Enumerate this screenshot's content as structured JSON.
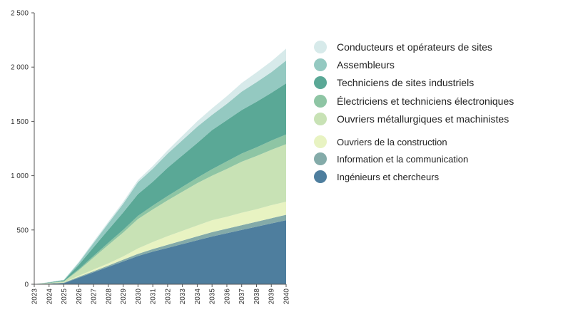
{
  "chart_data": {
    "type": "area",
    "stacked": true,
    "title": "",
    "xlabel": "",
    "ylabel": "",
    "x": [
      "2023",
      "2024",
      "2025",
      "2026",
      "2027",
      "2028",
      "2029",
      "2030",
      "2031",
      "2032",
      "2033",
      "2034",
      "2035",
      "2036",
      "2037",
      "2038",
      "2039",
      "2040"
    ],
    "ylim": [
      0,
      2500
    ],
    "yticks": [
      0,
      500,
      1000,
      1500,
      2000,
      2500
    ],
    "ytick_labels": [
      "0",
      "500",
      "1 000",
      "1 500",
      "2 000",
      "2 500"
    ],
    "series": [
      {
        "name": "Ingénieurs et chercheurs",
        "color": "#4e7e9e",
        "values": [
          0,
          5,
          10,
          60,
          110,
          160,
          210,
          260,
          300,
          335,
          370,
          405,
          440,
          470,
          500,
          530,
          560,
          590
        ]
      },
      {
        "name": "Information et la communication",
        "color": "#84aba9",
        "values": [
          0,
          2,
          5,
          8,
          10,
          12,
          16,
          20,
          24,
          28,
          32,
          36,
          40,
          42,
          44,
          46,
          48,
          50
        ]
      },
      {
        "name": "Ouvriers de la construction",
        "color": "#e8f3c2",
        "values": [
          0,
          1,
          2,
          10,
          15,
          20,
          30,
          50,
          65,
          80,
          90,
          100,
          110,
          110,
          115,
          115,
          120,
          120
        ]
      },
      {
        "name": "Ouvriers métallurgiques et machinistes",
        "color": "#c8e2b5",
        "values": [
          0,
          4,
          8,
          50,
          110,
          170,
          220,
          270,
          300,
          330,
          360,
          390,
          410,
          440,
          470,
          490,
          510,
          530
        ]
      },
      {
        "name": "Électriciens et techniciens électroniques",
        "color": "#8ec5a4",
        "values": [
          0,
          2,
          3,
          10,
          15,
          20,
          25,
          30,
          35,
          40,
          45,
          50,
          60,
          70,
          75,
          80,
          85,
          90
        ]
      },
      {
        "name": "Techniciens de sites industriels",
        "color": "#5aa896",
        "values": [
          0,
          3,
          7,
          40,
          80,
          120,
          160,
          200,
          220,
          260,
          290,
          320,
          360,
          380,
          400,
          420,
          440,
          470
        ]
      },
      {
        "name": "Assembleurs",
        "color": "#94c9c1",
        "values": [
          0,
          2,
          5,
          20,
          40,
          60,
          80,
          110,
          120,
          130,
          140,
          150,
          140,
          150,
          170,
          180,
          190,
          210
        ]
      },
      {
        "name": "Conducteurs et opérateurs de sites",
        "color": "#d7eaea",
        "values": [
          0,
          1,
          2,
          8,
          12,
          15,
          18,
          20,
          25,
          30,
          40,
          50,
          60,
          70,
          80,
          90,
          100,
          110
        ]
      }
    ]
  },
  "legend": {
    "items": [
      {
        "label": "Conducteurs et opérateurs de sites",
        "color": "#d7eaea"
      },
      {
        "label": "Assembleurs",
        "color": "#94c9c1"
      },
      {
        "label": "Techniciens de sites industriels",
        "color": "#5aa896"
      },
      {
        "label": "Électriciens et techniciens électroniques",
        "color": "#8ec5a4"
      },
      {
        "label": "Ouvriers métallurgiques et machinistes",
        "color": "#c8e2b5"
      },
      {
        "label": "Ouvriers de la construction",
        "color": "#e8f3c2"
      },
      {
        "label": "Information et la communication",
        "color": "#84aba9"
      },
      {
        "label": "Ingénieurs et chercheurs",
        "color": "#4e7e9e"
      }
    ]
  }
}
